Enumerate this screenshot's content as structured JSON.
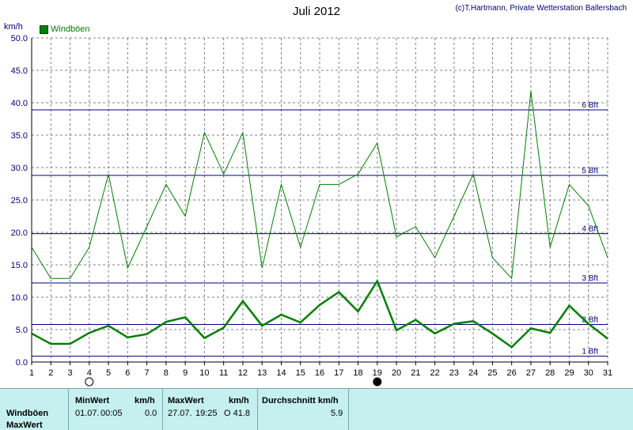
{
  "header": {
    "title": "Juli 2012",
    "copyright": "(c)T.Hartmann, Private Wetterstation Ballersbach",
    "unit": "km/h",
    "legend_label": "Windböen"
  },
  "colors": {
    "series": "#008000",
    "beaufort": "#000080",
    "grid": "#808080",
    "footer_bg": "#c6f0f0"
  },
  "chart_data": {
    "type": "line",
    "title": "Juli 2012",
    "ylabel": "km/h",
    "ylim": [
      0,
      50
    ],
    "xlim": [
      1,
      31
    ],
    "grid": true,
    "legend": "top-left",
    "x": [
      1,
      2,
      3,
      4,
      5,
      6,
      7,
      8,
      9,
      10,
      11,
      12,
      13,
      14,
      15,
      16,
      17,
      18,
      19,
      20,
      21,
      22,
      23,
      24,
      25,
      26,
      27,
      28,
      29,
      30,
      31
    ],
    "x_tick_labels": [
      "1",
      "2",
      "3",
      "4",
      "5",
      "6",
      "7",
      "8",
      "9",
      "10",
      "11",
      "12",
      "13",
      "14",
      "15",
      "16",
      "17",
      "18",
      "19",
      "20",
      "21",
      "22",
      "23",
      "24",
      "25",
      "26",
      "27",
      "28",
      "29",
      "30",
      "31"
    ],
    "y_tick_labels": [
      "0.0",
      "5.0",
      "10.0",
      "15.0",
      "20.0",
      "25.0",
      "30.0",
      "35.0",
      "40.0",
      "45.0",
      "50.0"
    ],
    "series": [
      {
        "name": "Windböen",
        "values": [
          17.7,
          12.9,
          12.9,
          17.7,
          29.0,
          14.5,
          20.9,
          27.4,
          22.5,
          35.4,
          29.0,
          35.4,
          14.5,
          27.4,
          17.7,
          27.4,
          27.4,
          29.0,
          33.8,
          19.3,
          20.9,
          16.1,
          22.5,
          29.0,
          16.1,
          12.9,
          41.8,
          17.7,
          27.4,
          24.1,
          16.1
        ]
      },
      {
        "values": [
          4.4,
          2.8,
          2.8,
          4.5,
          5.6,
          3.8,
          4.3,
          6.2,
          6.9,
          3.7,
          5.3,
          9.4,
          5.6,
          7.3,
          6.1,
          8.8,
          10.8,
          7.8,
          12.5,
          4.9,
          6.5,
          4.4,
          5.9,
          6.3,
          4.4,
          2.3,
          5.2,
          4.5,
          8.7,
          5.9,
          3.6
        ]
      }
    ],
    "beaufort_lines": [
      {
        "label": "1 Bft",
        "value": 0.9
      },
      {
        "label": "2 Bft",
        "value": 5.8
      },
      {
        "label": "3 Bft",
        "value": 12.2
      },
      {
        "label": "4 Bft",
        "value": 19.8
      },
      {
        "label": "5 Bft",
        "value": 28.8
      },
      {
        "label": "6 Bft",
        "value": 38.9
      }
    ],
    "moon_phases": [
      {
        "x": 4,
        "phase": "full"
      },
      {
        "x": 19,
        "phase": "new"
      }
    ]
  },
  "footer": {
    "row_label_1": "Windböen",
    "row_label_2": "MaxWert",
    "min_header": "MinWert",
    "min_unit": "km/h",
    "min_date": "01.07.",
    "min_time": "00:05",
    "min_value": "0.0",
    "max_header": "MaxWert",
    "max_unit": "km/h",
    "max_date": "27.07.",
    "max_time": "19:25",
    "max_value": "O 41.8",
    "avg_header": "Durchschnitt km/h",
    "avg_value": "5.9"
  }
}
